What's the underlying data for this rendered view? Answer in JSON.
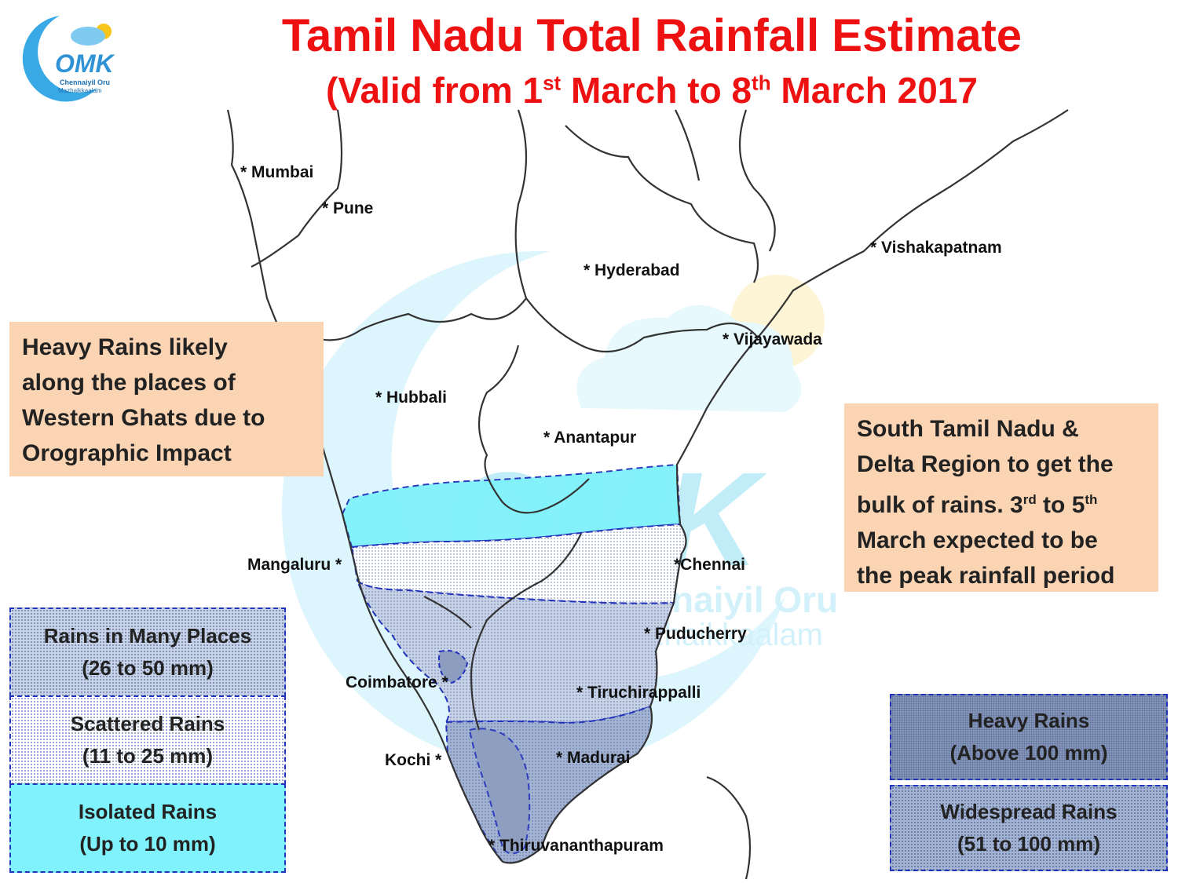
{
  "title": {
    "line1": "Tamil Nadu Total Rainfall Estimate",
    "line2_prefix": "(Valid from 1",
    "line2_sup1": "st",
    "line2_mid": " March to 8",
    "line2_sup2": "th",
    "line2_suffix": " March 2017"
  },
  "logo": {
    "text": "OMK",
    "subtitle_line1": "Chennaiyil Oru",
    "subtitle_line2": "Mazhaikkaalam"
  },
  "watermark": {
    "text": "OMK",
    "subtitle_line1": "Chennaiyil Oru",
    "subtitle_line2": "Mazhaikkaalam"
  },
  "cities": {
    "mumbai": "* Mumbai",
    "pune": "* Pune",
    "hyderabad": "* Hyderabad",
    "vishakapatnam": "* Vishakapatnam",
    "vijayawada": "* Vijayawada",
    "hubbali": "* Hubbali",
    "anantapur": "* Anantapur",
    "mangaluru": "Mangaluru *",
    "chennai": "*Chennai",
    "puducherry": "* Puducherry",
    "coimbatore": "Coimbatore *",
    "tiruchirappalli": "* Tiruchirappalli",
    "kochi": "Kochi *",
    "madurai": "* Madurai",
    "thiruvananthapuram": "* Thiruvananthapuram"
  },
  "notes": {
    "west": {
      "line1": "Heavy Rains likely",
      "line2": "along the places of",
      "line3": "Western Ghats due to",
      "line4": "Orographic Impact"
    },
    "east": {
      "line1": "South Tamil Nadu &",
      "line2": "Delta Region to get the",
      "line3_prefix": "bulk of rains. 3",
      "line3_sup1": "rd",
      "line3_mid": " to 5",
      "line3_sup2": "th",
      "line4": "March expected to be",
      "line5": "the peak rainfall period"
    }
  },
  "legend": {
    "many": {
      "label": "Rains in Many Places",
      "range": "(26 to 50 mm)"
    },
    "scattered": {
      "label": "Scattered Rains",
      "range": "(11 to 25 mm)"
    },
    "isolated": {
      "label": "Isolated Rains",
      "range": "(Up to 10 mm)"
    },
    "heavy": {
      "label": "Heavy Rains",
      "range": "(Above 100 mm)"
    },
    "widespread": {
      "label": "Widespread Rains",
      "range": "(51 to 100 mm)"
    }
  },
  "colors": {
    "title": "#ee1111",
    "note_bg": "#fbd4b4",
    "isolated": "#7ff2fb",
    "border_dash": "#2233bb"
  }
}
